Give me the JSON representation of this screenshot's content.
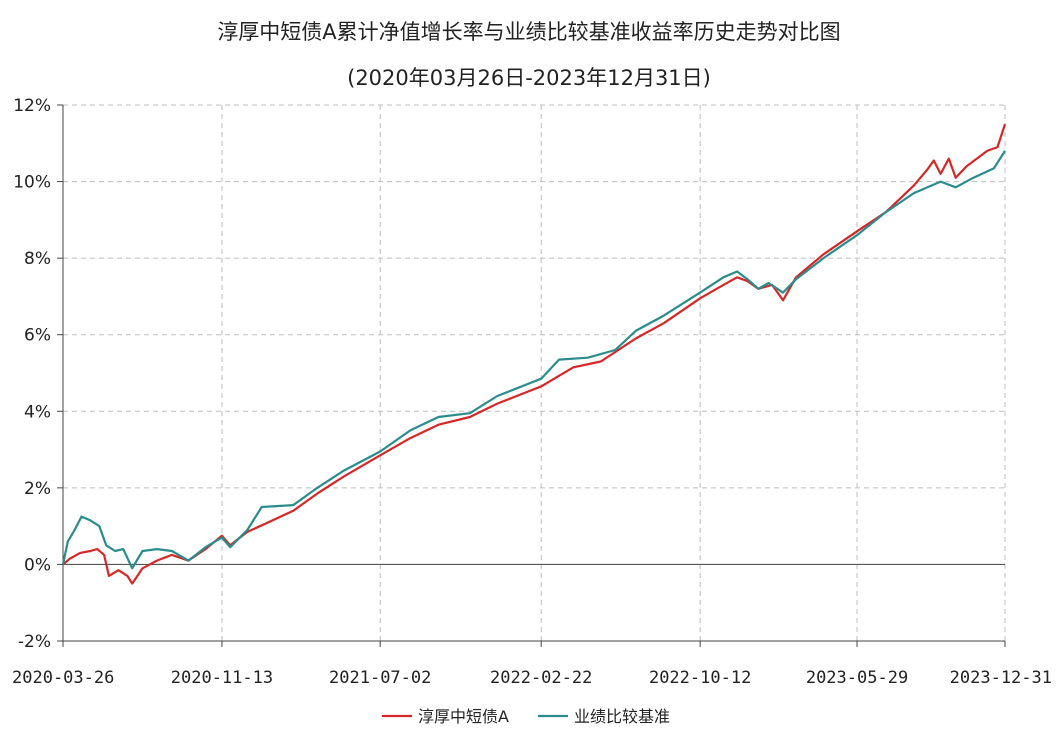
{
  "chart_data": {
    "type": "line",
    "title": "淳厚中短债A累计净值增长率与业绩比较基准收益率历史走势对比图",
    "subtitle": "(2020年03月26日-2023年12月31日)",
    "x_ticks": [
      "2020-03-26",
      "2020-11-13",
      "2021-07-02",
      "2022-02-22",
      "2022-10-12",
      "2023-05-29",
      "2023-12-31"
    ],
    "y_ticks": [
      "-2%",
      "0%",
      "2%",
      "4%",
      "6%",
      "8%",
      "10%",
      "12%"
    ],
    "ylim": [
      -2,
      12
    ],
    "y_unit": "%",
    "grid": true,
    "legend_position": "bottom-center",
    "series": [
      {
        "name": "淳厚中短债A",
        "color": "#d62728",
        "points": [
          [
            "2020-03-26",
            0.0
          ],
          [
            "2020-04-05",
            0.15
          ],
          [
            "2020-04-20",
            0.3
          ],
          [
            "2020-05-05",
            0.35
          ],
          [
            "2020-05-15",
            0.4
          ],
          [
            "2020-05-25",
            0.25
          ],
          [
            "2020-06-01",
            -0.3
          ],
          [
            "2020-06-15",
            -0.15
          ],
          [
            "2020-06-28",
            -0.3
          ],
          [
            "2020-07-05",
            -0.5
          ],
          [
            "2020-07-20",
            -0.1
          ],
          [
            "2020-08-10",
            0.1
          ],
          [
            "2020-09-01",
            0.25
          ],
          [
            "2020-09-25",
            0.1
          ],
          [
            "2020-10-20",
            0.4
          ],
          [
            "2020-11-13",
            0.75
          ],
          [
            "2020-11-25",
            0.5
          ],
          [
            "2020-12-20",
            0.85
          ],
          [
            "2021-01-20",
            1.1
          ],
          [
            "2021-02-25",
            1.4
          ],
          [
            "2021-04-01",
            1.85
          ],
          [
            "2021-05-10",
            2.3
          ],
          [
            "2021-07-02",
            2.85
          ],
          [
            "2021-08-15",
            3.3
          ],
          [
            "2021-09-25",
            3.65
          ],
          [
            "2021-11-10",
            3.85
          ],
          [
            "2021-12-20",
            4.2
          ],
          [
            "2022-02-22",
            4.65
          ],
          [
            "2022-04-10",
            5.15
          ],
          [
            "2022-05-20",
            5.3
          ],
          [
            "2022-07-10",
            5.9
          ],
          [
            "2022-08-20",
            6.3
          ],
          [
            "2022-10-12",
            6.95
          ],
          [
            "2022-11-15",
            7.3
          ],
          [
            "2022-12-05",
            7.5
          ],
          [
            "2022-12-20",
            7.4
          ],
          [
            "2023-01-05",
            7.2
          ],
          [
            "2023-01-25",
            7.3
          ],
          [
            "2023-02-10",
            6.9
          ],
          [
            "2023-03-01",
            7.5
          ],
          [
            "2023-04-10",
            8.1
          ],
          [
            "2023-05-29",
            8.7
          ],
          [
            "2023-07-10",
            9.2
          ],
          [
            "2023-08-20",
            9.9
          ],
          [
            "2023-09-08",
            10.3
          ],
          [
            "2023-09-18",
            10.55
          ],
          [
            "2023-09-28",
            10.2
          ],
          [
            "2023-10-10",
            10.6
          ],
          [
            "2023-10-20",
            10.1
          ],
          [
            "2023-11-05",
            10.4
          ],
          [
            "2023-12-05",
            10.8
          ],
          [
            "2023-12-20",
            10.9
          ],
          [
            "2023-12-31",
            11.5
          ]
        ]
      },
      {
        "name": "业绩比较基准",
        "color": "#2a8c8c",
        "points": [
          [
            "2020-03-26",
            0.0
          ],
          [
            "2020-04-02",
            0.6
          ],
          [
            "2020-04-12",
            0.9
          ],
          [
            "2020-04-22",
            1.25
          ],
          [
            "2020-05-05",
            1.15
          ],
          [
            "2020-05-18",
            1.0
          ],
          [
            "2020-05-28",
            0.5
          ],
          [
            "2020-06-10",
            0.35
          ],
          [
            "2020-06-22",
            0.4
          ],
          [
            "2020-07-05",
            -0.1
          ],
          [
            "2020-07-20",
            0.35
          ],
          [
            "2020-08-10",
            0.4
          ],
          [
            "2020-09-01",
            0.35
          ],
          [
            "2020-09-25",
            0.1
          ],
          [
            "2020-10-20",
            0.45
          ],
          [
            "2020-11-13",
            0.7
          ],
          [
            "2020-11-25",
            0.45
          ],
          [
            "2020-12-20",
            0.9
          ],
          [
            "2021-01-10",
            1.5
          ],
          [
            "2021-02-25",
            1.55
          ],
          [
            "2021-04-01",
            2.0
          ],
          [
            "2021-05-10",
            2.45
          ],
          [
            "2021-07-02",
            2.95
          ],
          [
            "2021-08-15",
            3.5
          ],
          [
            "2021-09-25",
            3.85
          ],
          [
            "2021-11-10",
            3.95
          ],
          [
            "2021-12-20",
            4.4
          ],
          [
            "2022-02-22",
            4.85
          ],
          [
            "2022-03-20",
            5.35
          ],
          [
            "2022-05-01",
            5.4
          ],
          [
            "2022-06-10",
            5.6
          ],
          [
            "2022-07-10",
            6.1
          ],
          [
            "2022-08-20",
            6.5
          ],
          [
            "2022-10-12",
            7.1
          ],
          [
            "2022-11-15",
            7.5
          ],
          [
            "2022-12-05",
            7.65
          ],
          [
            "2022-12-20",
            7.45
          ],
          [
            "2023-01-05",
            7.2
          ],
          [
            "2023-01-20",
            7.35
          ],
          [
            "2023-02-10",
            7.1
          ],
          [
            "2023-03-01",
            7.45
          ],
          [
            "2023-04-10",
            8.0
          ],
          [
            "2023-05-29",
            8.6
          ],
          [
            "2023-07-10",
            9.2
          ],
          [
            "2023-08-20",
            9.7
          ],
          [
            "2023-09-28",
            10.0
          ],
          [
            "2023-10-20",
            9.85
          ],
          [
            "2023-11-15",
            10.1
          ],
          [
            "2023-12-15",
            10.35
          ],
          [
            "2023-12-31",
            10.8
          ]
        ]
      }
    ]
  }
}
